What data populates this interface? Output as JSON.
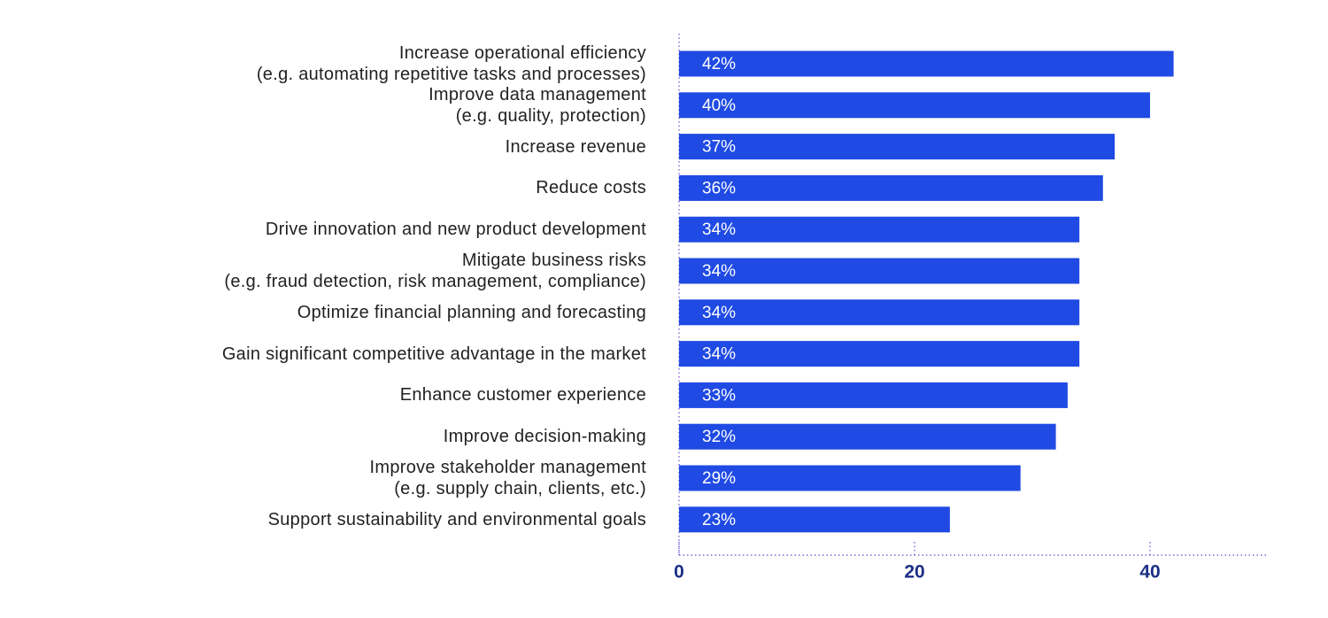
{
  "chart_data": {
    "type": "bar",
    "orientation": "horizontal",
    "categories": [
      "Increase operational efficiency\n(e.g. automating repetitive tasks and processes)",
      "Improve data management\n(e.g. quality, protection)",
      "Increase revenue",
      "Reduce costs",
      "Drive innovation and new product development",
      "Mitigate business risks\n(e.g. fraud detection, risk management, compliance)",
      "Optimize financial planning and forecasting",
      "Gain significant competitive advantage in the market",
      "Enhance customer experience",
      "Improve decision-making",
      "Improve stakeholder management\n(e.g. supply chain, clients, etc.)",
      "Support sustainability and environmental goals"
    ],
    "values": [
      42,
      40,
      37,
      36,
      34,
      34,
      34,
      34,
      33,
      32,
      29,
      23
    ],
    "value_labels": [
      "42%",
      "40%",
      "37%",
      "36%",
      "34%",
      "34%",
      "34%",
      "34%",
      "33%",
      "32%",
      "29%",
      "23%"
    ],
    "color": "#1f4ae3",
    "xlim": [
      0,
      50
    ],
    "xticks": [
      0,
      20,
      40
    ],
    "grid": false
  }
}
